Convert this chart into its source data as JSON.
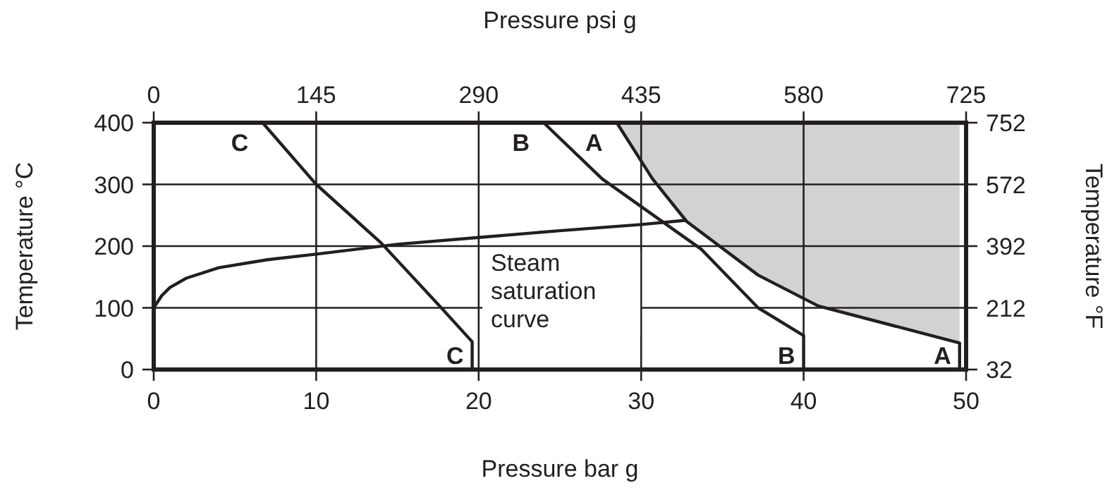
{
  "chart_data": {
    "type": "line",
    "xlabel": "Pressure bar g",
    "ylabel": "Temperature  °C",
    "y2label": "Temperature  °F",
    "x2label": "Pressure psi g",
    "xlim": [
      0,
      50
    ],
    "xticks": [
      0,
      10,
      20,
      30,
      40,
      50
    ],
    "ylim": [
      0,
      400
    ],
    "yticks": [
      0,
      100,
      200,
      300,
      400
    ],
    "x2lim": [
      0,
      725
    ],
    "x2ticks": [
      0,
      145,
      290,
      435,
      580,
      725
    ],
    "y2lim": [
      32,
      752
    ],
    "y2ticks": [
      32,
      212,
      392,
      572,
      752
    ],
    "grid": true,
    "line_style": "solid",
    "marker": "none",
    "series": [
      {
        "name": "A",
        "color": "#231f20",
        "x": [
          28.5,
          30.7,
          32.8,
          37.2,
          40.9,
          49.6,
          49.6
        ],
        "values": [
          400,
          309,
          240,
          153,
          103,
          43,
          0
        ],
        "lower": [
          400,
          309,
          240,
          153,
          103,
          43,
          null
        ],
        "upper": [
          400,
          400,
          400,
          400,
          400,
          400,
          null
        ]
      },
      {
        "name": "B",
        "color": "#231f20",
        "x": [
          24,
          27.6,
          33.7,
          37.2,
          40,
          40
        ],
        "values": [
          400,
          309,
          195,
          100,
          55,
          0
        ]
      },
      {
        "name": "C",
        "color": "#231f20",
        "x": [
          6.7,
          10,
          14,
          17.7,
          19.6,
          19.6
        ],
        "values": [
          400,
          300,
          205,
          100,
          45,
          0
        ]
      },
      {
        "color": "#231f20",
        "x": [
          0,
          0.5,
          1,
          2,
          4,
          7,
          10,
          15,
          20,
          25,
          30,
          32.8
        ],
        "values": [
          100,
          120,
          133,
          148,
          165,
          178,
          187,
          203,
          214,
          225,
          235,
          242
        ]
      }
    ],
    "annotations": [
      "Steam saturation curve"
    ]
  }
}
